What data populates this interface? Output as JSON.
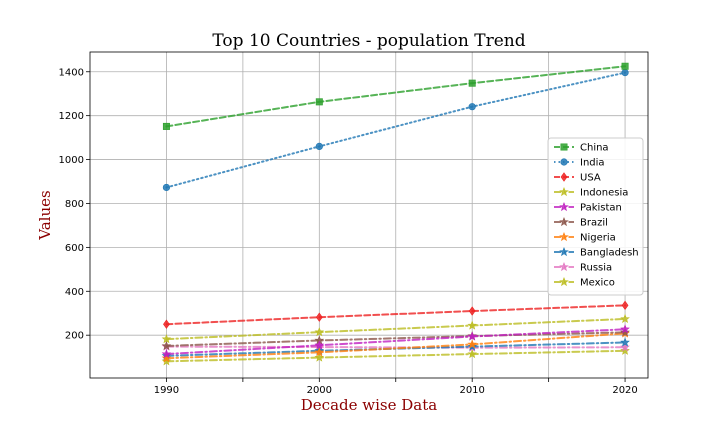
{
  "chart_data": {
    "type": "line",
    "title": "Top 10 Countries - population Trend",
    "xlabel": "Decade wise Data",
    "ylabel": "Values",
    "x": [
      1990,
      2000,
      2010,
      2020
    ],
    "x_ticks": [
      1990,
      2000,
      2010,
      2020
    ],
    "y_ticks": [
      200,
      400,
      600,
      800,
      1000,
      1200,
      1400
    ],
    "xlim": [
      1985,
      2021.5
    ],
    "ylim": [
      5,
      1490
    ],
    "grid": true,
    "legend_position": "right",
    "series": [
      {
        "name": "China",
        "values": [
          1151,
          1263,
          1348,
          1425
        ],
        "color": "#2ca02c",
        "marker": "square",
        "dash": "6,3"
      },
      {
        "name": "India",
        "values": [
          873,
          1060,
          1241,
          1396
        ],
        "color": "#1f77b4",
        "marker": "circle",
        "dash": "1.5,3"
      },
      {
        "name": "USA",
        "values": [
          250,
          282,
          310,
          336
        ],
        "color": "#ee2222",
        "marker": "diamond",
        "dash": "6,3"
      },
      {
        "name": "Indonesia",
        "values": [
          182,
          214,
          244,
          274
        ],
        "color": "#bcbd22",
        "marker": "star",
        "dash": "7,3,1.5,3"
      },
      {
        "name": "Pakistan",
        "values": [
          114,
          154,
          194,
          227
        ],
        "color": "#c020c0",
        "marker": "star",
        "dash": "7,3,1.5,3"
      },
      {
        "name": "Brazil",
        "values": [
          151,
          176,
          196,
          213
        ],
        "color": "#8c564b",
        "marker": "star",
        "dash": "7,3,1.5,3"
      },
      {
        "name": "Nigeria",
        "values": [
          95,
          122,
          158,
          208
        ],
        "color": "#ff7f0e",
        "marker": "star",
        "dash": "7,3,1.5,3"
      },
      {
        "name": "Bangladesh",
        "values": [
          106,
          129,
          148,
          167
        ],
        "color": "#1f77b4",
        "marker": "star",
        "dash": "7,3,1.5,3"
      },
      {
        "name": "Russia",
        "values": [
          148,
          146,
          143,
          145
        ],
        "color": "#e377c2",
        "marker": "star",
        "dash": "7,3,1.5,3"
      },
      {
        "name": "Mexico",
        "values": [
          81,
          98,
          114,
          129
        ],
        "color": "#bcbd22",
        "marker": "star",
        "dash": "7,3,1.5,3"
      }
    ]
  }
}
